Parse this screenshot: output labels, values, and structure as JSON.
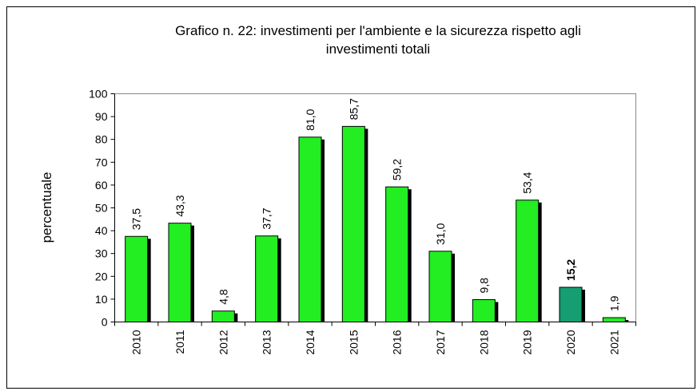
{
  "chart_data": {
    "type": "bar",
    "title": "Grafico n. 22: investimenti  per l'ambiente  e la sicurezza rispetto agli",
    "subtitle": "investimenti  totali",
    "ylabel": "percentuale",
    "categories": [
      "2010",
      "2011",
      "2012",
      "2013",
      "2014",
      "2015",
      "2016",
      "2017",
      "2018",
      "2019",
      "2020",
      "2021"
    ],
    "values": [
      37.5,
      43.3,
      4.8,
      37.7,
      81.0,
      85.7,
      59.2,
      31.0,
      9.8,
      53.4,
      15.2,
      1.9
    ],
    "value_labels": [
      "37,5",
      "43,3",
      "4,8",
      "37,7",
      "81,0",
      "85,7",
      "59,2",
      "31,0",
      "9,8",
      "53,4",
      "15,2",
      "1,9"
    ],
    "colors": [
      "#22ee22",
      "#22ee22",
      "#22ee22",
      "#22ee22",
      "#22ee22",
      "#22ee22",
      "#22ee22",
      "#22ee22",
      "#22ee22",
      "#22ee22",
      "#169e72",
      "#22ee22"
    ],
    "value_label_bold": [
      false,
      false,
      false,
      false,
      false,
      false,
      false,
      false,
      false,
      false,
      true,
      false
    ],
    "ylim": [
      0,
      100
    ],
    "yticks": [
      0,
      10,
      20,
      30,
      40,
      50,
      60,
      70,
      80,
      90,
      100
    ],
    "grid": false
  }
}
